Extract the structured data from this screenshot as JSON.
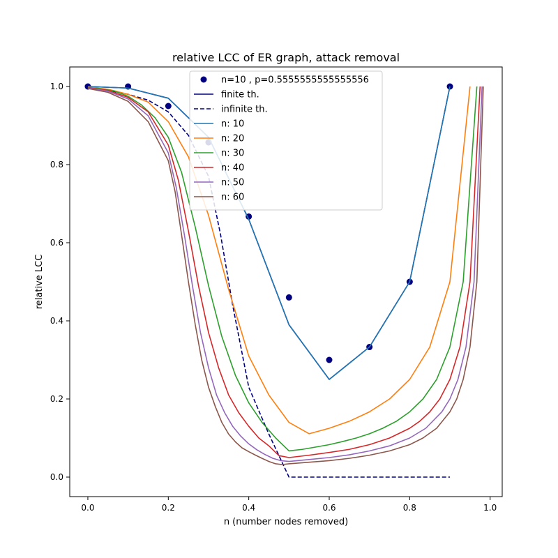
{
  "chart_data": {
    "type": "line",
    "title": "relative LCC of ER graph, attack removal",
    "xlabel": "n (number nodes removed)",
    "ylabel": "relative LCC",
    "xlim": [
      -0.045,
      1.03
    ],
    "ylim": [
      -0.05,
      1.05
    ],
    "xticks": [
      0.0,
      0.2,
      0.4,
      0.6,
      0.8,
      1.0
    ],
    "yticks": [
      0.0,
      0.2,
      0.4,
      0.6,
      0.8,
      1.0
    ],
    "xtick_labels": [
      "0.0",
      "0.2",
      "0.4",
      "0.6",
      "0.8",
      "1.0"
    ],
    "ytick_labels": [
      "0.0",
      "0.2",
      "0.4",
      "0.6",
      "0.8",
      "1.0"
    ],
    "grid": false,
    "legend_position": "top-center",
    "series": [
      {
        "name": "n=10 , p=0.5555555555555556",
        "kind": "scatter",
        "color": "#000080",
        "x": [
          0.0,
          0.1,
          0.2,
          0.3,
          0.4,
          0.5,
          0.6,
          0.7,
          0.8,
          0.9
        ],
        "y": [
          1.0,
          1.0,
          0.95,
          0.857,
          0.667,
          0.46,
          0.3,
          0.333,
          0.5,
          1.0
        ]
      },
      {
        "name": "finite th.",
        "kind": "line",
        "color": "#000080",
        "dash": "solid",
        "x": [
          0.0,
          0.1,
          0.2,
          0.3,
          0.4,
          0.5,
          0.6,
          0.7,
          0.8,
          0.9
        ],
        "y": [
          1.0,
          0.996,
          0.97,
          0.87,
          0.66,
          0.39,
          0.25,
          0.333,
          0.5,
          1.0
        ]
      },
      {
        "name": "infinite th.",
        "kind": "line",
        "color": "#000080",
        "dash": "dashed",
        "x": [
          0.0,
          0.05,
          0.1,
          0.15,
          0.2,
          0.25,
          0.3,
          0.33,
          0.36,
          0.4,
          0.45,
          0.5,
          0.6,
          0.7,
          0.8,
          0.9
        ],
        "y": [
          0.996,
          0.99,
          0.98,
          0.965,
          0.935,
          0.875,
          0.77,
          0.62,
          0.44,
          0.23,
          0.11,
          0.0,
          0.0,
          0.0,
          0.0,
          0.0
        ]
      },
      {
        "name": "n: 10",
        "kind": "line",
        "color": "#1f77b4",
        "dash": "solid",
        "x": [
          0.0,
          0.1,
          0.2,
          0.3,
          0.4,
          0.5,
          0.6,
          0.7,
          0.8,
          0.9
        ],
        "y": [
          1.0,
          0.996,
          0.97,
          0.87,
          0.66,
          0.39,
          0.25,
          0.333,
          0.5,
          1.0
        ]
      },
      {
        "name": "n: 20",
        "kind": "line",
        "color": "#ff7f0e",
        "dash": "solid",
        "x": [
          0.0,
          0.05,
          0.1,
          0.15,
          0.2,
          0.25,
          0.3,
          0.35,
          0.4,
          0.45,
          0.5,
          0.55,
          0.6,
          0.65,
          0.7,
          0.75,
          0.8,
          0.85,
          0.9,
          0.95
        ],
        "y": [
          0.998,
          0.993,
          0.98,
          0.96,
          0.91,
          0.82,
          0.67,
          0.48,
          0.31,
          0.21,
          0.14,
          0.111,
          0.125,
          0.143,
          0.167,
          0.2,
          0.25,
          0.333,
          0.5,
          1.0
        ]
      },
      {
        "name": "n: 30",
        "kind": "line",
        "color": "#2ca02c",
        "dash": "solid",
        "x": [
          0.0,
          0.033,
          0.067,
          0.1,
          0.133,
          0.167,
          0.2,
          0.233,
          0.267,
          0.3,
          0.333,
          0.367,
          0.4,
          0.433,
          0.467,
          0.5,
          0.533,
          0.567,
          0.6,
          0.633,
          0.667,
          0.7,
          0.733,
          0.767,
          0.8,
          0.833,
          0.867,
          0.9,
          0.933,
          0.967
        ],
        "y": [
          0.997,
          0.994,
          0.988,
          0.975,
          0.953,
          0.92,
          0.87,
          0.78,
          0.64,
          0.49,
          0.36,
          0.26,
          0.19,
          0.14,
          0.1,
          0.067,
          0.071,
          0.077,
          0.083,
          0.091,
          0.1,
          0.111,
          0.125,
          0.143,
          0.167,
          0.2,
          0.25,
          0.333,
          0.5,
          1.0
        ]
      },
      {
        "name": "n: 40",
        "kind": "line",
        "color": "#d62728",
        "dash": "solid",
        "x": [
          0.0,
          0.05,
          0.1,
          0.15,
          0.2,
          0.225,
          0.25,
          0.275,
          0.3,
          0.325,
          0.35,
          0.375,
          0.4,
          0.425,
          0.45,
          0.475,
          0.5,
          0.55,
          0.6,
          0.65,
          0.7,
          0.75,
          0.8,
          0.825,
          0.85,
          0.875,
          0.9,
          0.925,
          0.95,
          0.975
        ],
        "y": [
          0.997,
          0.99,
          0.972,
          0.935,
          0.85,
          0.76,
          0.63,
          0.49,
          0.37,
          0.28,
          0.21,
          0.165,
          0.13,
          0.1,
          0.08,
          0.055,
          0.05,
          0.056,
          0.063,
          0.071,
          0.083,
          0.1,
          0.125,
          0.143,
          0.167,
          0.2,
          0.25,
          0.333,
          0.5,
          1.0
        ]
      },
      {
        "name": "n: 50",
        "kind": "line",
        "color": "#9467bd",
        "dash": "solid",
        "x": [
          0.0,
          0.05,
          0.1,
          0.15,
          0.2,
          0.22,
          0.24,
          0.26,
          0.28,
          0.3,
          0.32,
          0.34,
          0.36,
          0.38,
          0.4,
          0.42,
          0.44,
          0.46,
          0.48,
          0.5,
          0.55,
          0.6,
          0.65,
          0.7,
          0.75,
          0.8,
          0.84,
          0.88,
          0.9,
          0.92,
          0.94,
          0.96,
          0.98
        ],
        "y": [
          0.996,
          0.988,
          0.968,
          0.925,
          0.83,
          0.74,
          0.62,
          0.49,
          0.37,
          0.28,
          0.21,
          0.165,
          0.13,
          0.105,
          0.085,
          0.07,
          0.058,
          0.048,
          0.042,
          0.04,
          0.045,
          0.05,
          0.057,
          0.067,
          0.08,
          0.1,
          0.125,
          0.167,
          0.2,
          0.25,
          0.333,
          0.5,
          1.0
        ]
      },
      {
        "name": "n: 60",
        "kind": "line",
        "color": "#8c564b",
        "dash": "solid",
        "x": [
          0.0,
          0.05,
          0.1,
          0.15,
          0.2,
          0.217,
          0.233,
          0.25,
          0.267,
          0.283,
          0.3,
          0.317,
          0.333,
          0.35,
          0.367,
          0.383,
          0.4,
          0.417,
          0.433,
          0.45,
          0.467,
          0.483,
          0.5,
          0.55,
          0.6,
          0.65,
          0.7,
          0.75,
          0.8,
          0.833,
          0.867,
          0.9,
          0.917,
          0.933,
          0.95,
          0.967,
          0.983
        ],
        "y": [
          0.995,
          0.985,
          0.962,
          0.91,
          0.81,
          0.73,
          0.62,
          0.5,
          0.39,
          0.3,
          0.23,
          0.18,
          0.14,
          0.11,
          0.09,
          0.075,
          0.065,
          0.056,
          0.048,
          0.04,
          0.034,
          0.032,
          0.034,
          0.038,
          0.042,
          0.048,
          0.056,
          0.067,
          0.083,
          0.1,
          0.125,
          0.167,
          0.2,
          0.25,
          0.333,
          0.5,
          1.0
        ]
      }
    ]
  }
}
